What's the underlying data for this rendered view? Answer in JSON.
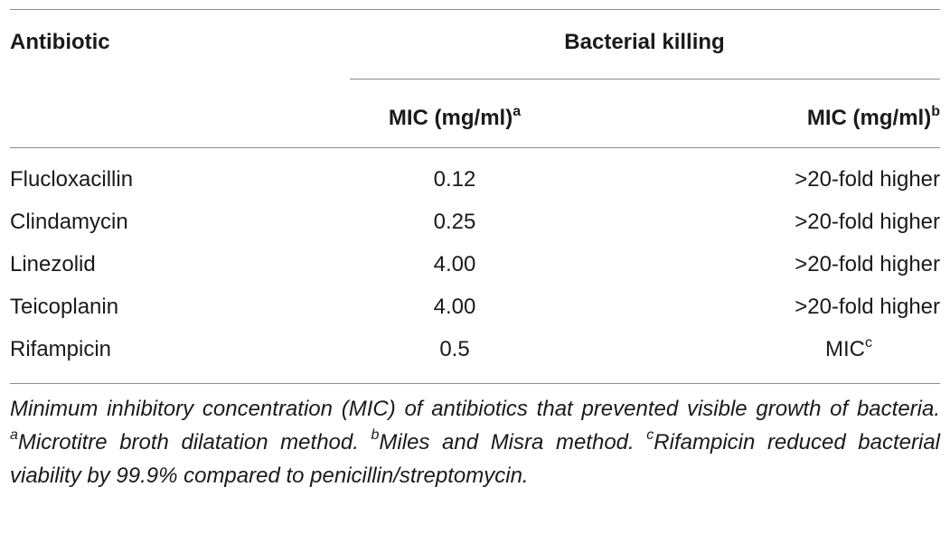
{
  "table": {
    "header": {
      "col1": "Antibiotic",
      "group": "Bacterial killing",
      "sub1": {
        "label": "MIC (mg/ml)",
        "sup": "a"
      },
      "sub2": {
        "label": "MIC (mg/ml)",
        "sup": "b"
      }
    },
    "rows": [
      {
        "antibiotic": "Flucloxacillin",
        "mic": "0.12",
        "killing": ">20-fold higher"
      },
      {
        "antibiotic": "Clindamycin",
        "mic": "0.25",
        "killing": ">20-fold higher"
      },
      {
        "antibiotic": "Linezolid",
        "mic": "4.00",
        "killing": ">20-fold higher"
      },
      {
        "antibiotic": "Teicoplanin",
        "mic": "4.00",
        "killing": ">20-fold higher"
      },
      {
        "antibiotic": "Rifampicin",
        "mic": "0.5",
        "killing": "MIC",
        "killing_sup": "c"
      }
    ]
  },
  "footnote": {
    "text1": "Minimum inhibitory concentration (MIC) of antibiotics that prevented visible growth of bacteria. ",
    "sup_a": "a",
    "text2": "Microtitre broth dilatation method. ",
    "sup_b": "b",
    "text3": "Miles and Misra method. ",
    "sup_c": "c",
    "text4": "Rifampicin reduced bacterial viability by 99.9% compared to penicillin/streptomycin."
  }
}
